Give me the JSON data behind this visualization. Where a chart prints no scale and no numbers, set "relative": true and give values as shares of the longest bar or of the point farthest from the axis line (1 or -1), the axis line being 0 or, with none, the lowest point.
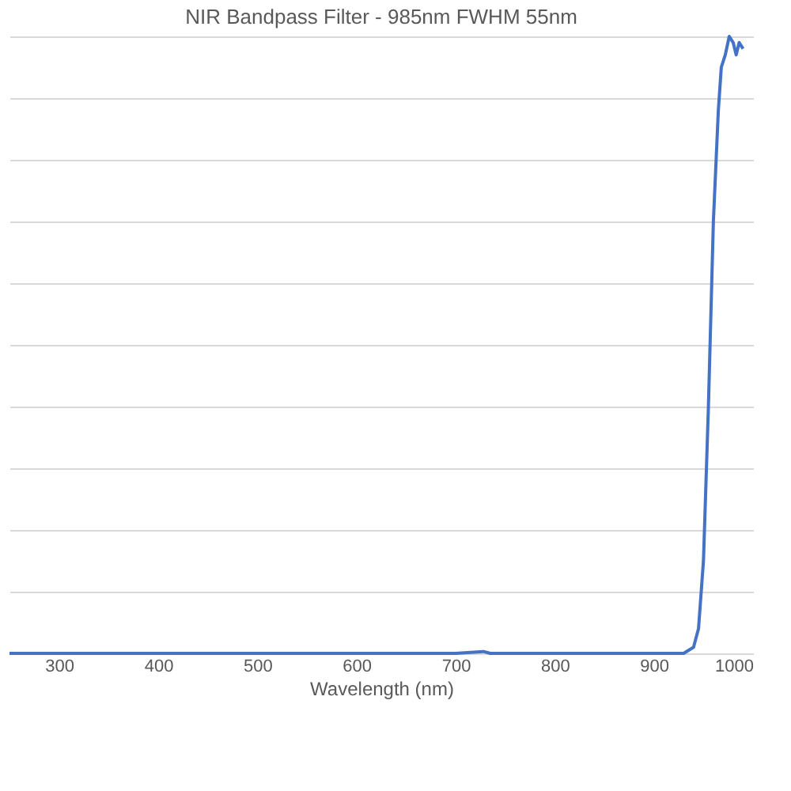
{
  "chart_data": {
    "type": "line",
    "title": "NIR Bandpass Filter - 985nm FWHM 55nm",
    "xlabel": "Wavelength (nm)",
    "relative": true,
    "grid": "y",
    "marker": "none",
    "line_style": "solid",
    "xlim": [
      250,
      1000
    ],
    "xticks": [
      300,
      400,
      500,
      600,
      700,
      800,
      900,
      1000
    ],
    "series": [
      {
        "color": "#4472c4",
        "x": [
          250,
          700,
          728,
          735,
          930,
          940,
          945,
          950,
          955,
          960,
          965,
          968,
          972,
          976,
          980,
          983,
          986,
          990
        ],
        "values": [
          0,
          0,
          0.003,
          0,
          0,
          0.01,
          0.04,
          0.15,
          0.4,
          0.7,
          0.88,
          0.95,
          0.97,
          1.0,
          0.99,
          0.97,
          0.99,
          0.98
        ]
      }
    ]
  }
}
